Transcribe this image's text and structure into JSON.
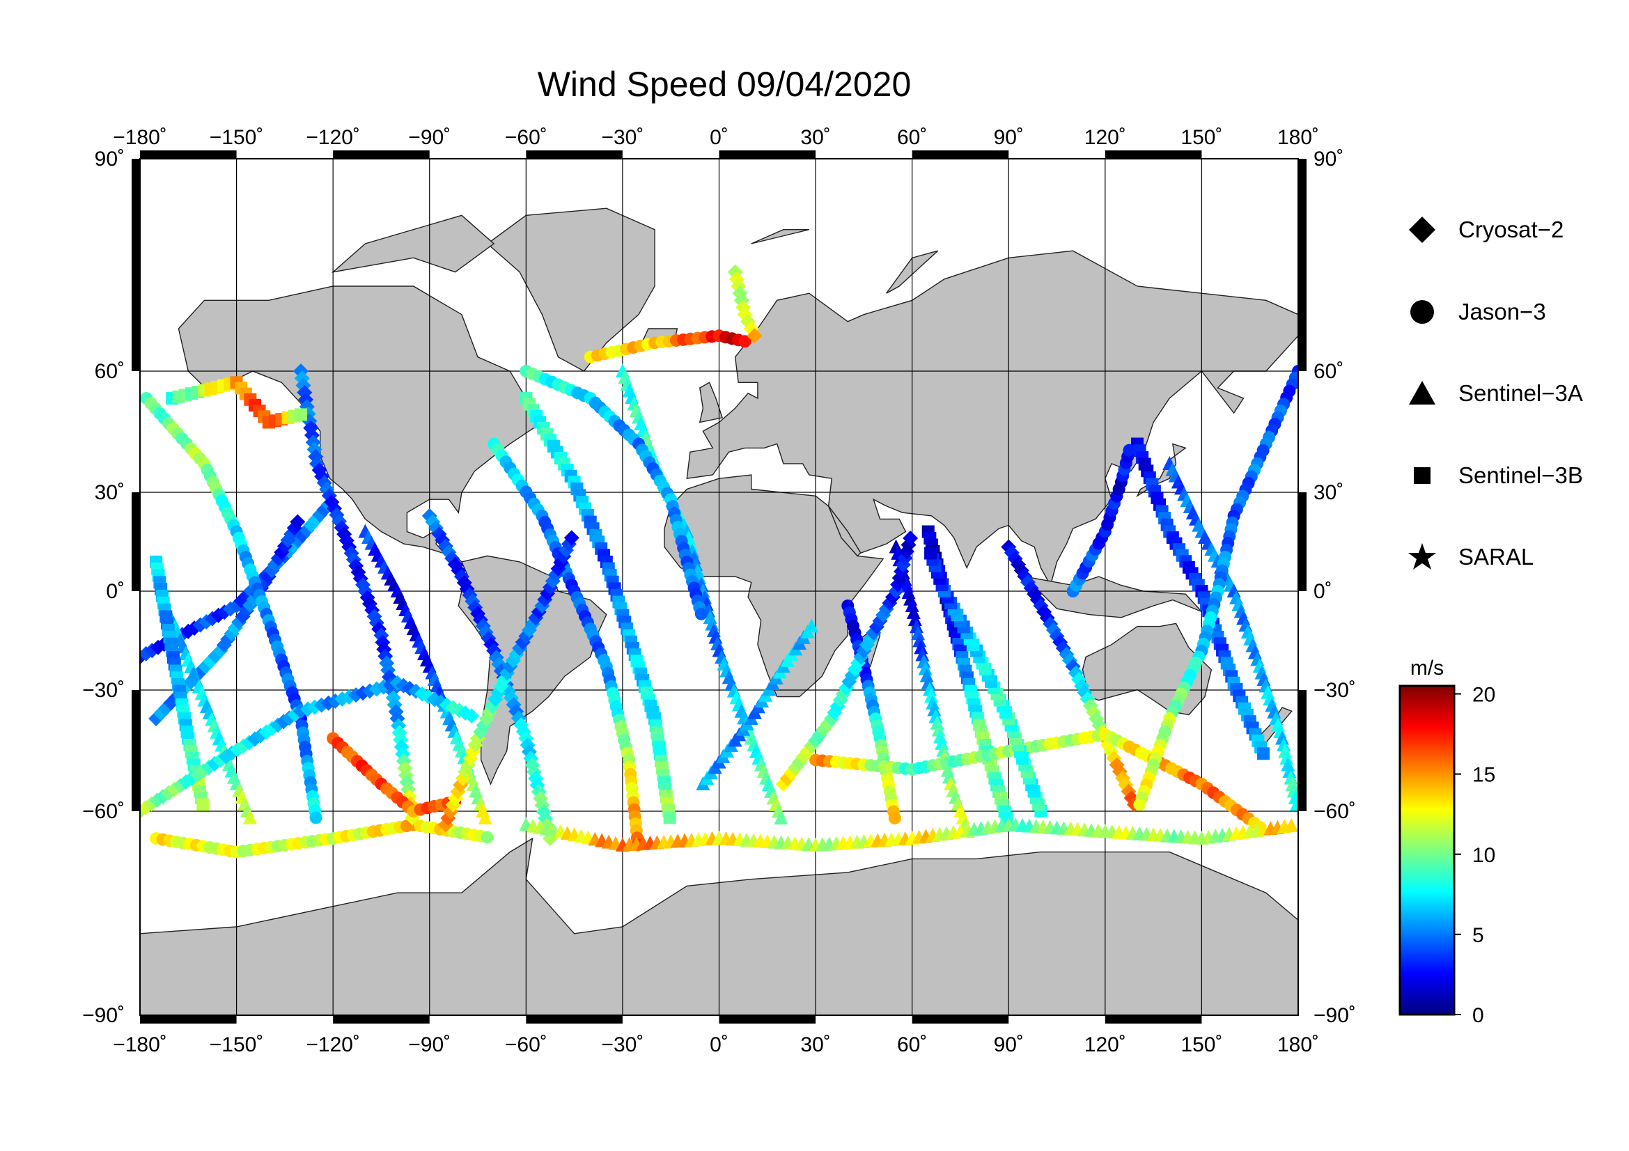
{
  "title": "Wind Speed 09/04/2020",
  "map": {
    "lon_ticks": [
      "−180˚",
      "−150˚",
      "−120˚",
      "−90˚",
      "−60˚",
      "−30˚",
      "0˚",
      "30˚",
      "60˚",
      "90˚",
      "120˚",
      "150˚",
      "180˚"
    ],
    "lat_ticks_left": [
      "90˚",
      "60˚",
      "30˚",
      "0˚",
      "−30˚",
      "−60˚",
      "−90˚"
    ],
    "lat_ticks_right": [
      "90˚",
      "60˚",
      "30˚",
      "0˚",
      "−30˚",
      "−60˚",
      "−90˚"
    ],
    "lon_values": [
      -180,
      -150,
      -120,
      -90,
      -60,
      -30,
      0,
      30,
      60,
      90,
      120,
      150,
      180
    ],
    "lat_values": [
      90,
      60,
      30,
      0,
      -30,
      -60,
      -90
    ],
    "projection": "mercator",
    "land_color": "#c0c0c0",
    "ocean_color": "#ffffff"
  },
  "legend": {
    "items": [
      {
        "label": "Cryosat−2",
        "symbol": "diamond-icon"
      },
      {
        "label": "Jason−3",
        "symbol": "circle-icon"
      },
      {
        "label": "Sentinel−3A",
        "symbol": "triangle-icon"
      },
      {
        "label": "Sentinel−3B",
        "symbol": "square-icon"
      },
      {
        "label": "SARAL",
        "symbol": "star-icon"
      }
    ]
  },
  "colorbar": {
    "unit": "m/s",
    "ticks": [
      "20",
      "15",
      "10",
      "5",
      "0"
    ],
    "tick_values": [
      20,
      15,
      10,
      5,
      0
    ],
    "range": [
      0,
      20.5
    ],
    "colors": [
      "#00007f",
      "#0000ff",
      "#007fff",
      "#00ffff",
      "#7fff7f",
      "#ffff00",
      "#ff7f00",
      "#ff0000",
      "#7f0000"
    ]
  },
  "tracks": [
    {
      "sat": "diamond",
      "pts": [
        [
          -180,
          -22
        ],
        [
          -150,
          -5
        ],
        [
          -135,
          12
        ],
        [
          -120,
          30
        ]
      ],
      "w": [
        3,
        4,
        5,
        6
      ]
    },
    {
      "sat": "diamond",
      "pts": [
        [
          -175,
          -40
        ],
        [
          -155,
          -20
        ],
        [
          -140,
          5
        ],
        [
          -130,
          25
        ]
      ],
      "w": [
        5,
        6,
        4,
        3
      ]
    },
    {
      "sat": "circle",
      "pts": [
        [
          -178,
          55
        ],
        [
          -160,
          40
        ],
        [
          -150,
          20
        ],
        [
          -140,
          -10
        ],
        [
          -130,
          -40
        ],
        [
          -125,
          -62
        ]
      ],
      "w": [
        9,
        11,
        7,
        5,
        4,
        8
      ]
    },
    {
      "sat": "circle",
      "pts": [
        [
          -175,
          -64
        ],
        [
          -150,
          -66
        ],
        [
          -120,
          -64
        ],
        [
          -95,
          -62
        ],
        [
          -70,
          -64
        ]
      ],
      "w": [
        13,
        12,
        12,
        14,
        11
      ]
    },
    {
      "sat": "triangle",
      "pts": [
        [
          -170,
          -10
        ],
        [
          -160,
          -35
        ],
        [
          -150,
          -55
        ],
        [
          -145,
          -62
        ]
      ],
      "w": [
        6,
        7,
        10,
        13
      ]
    },
    {
      "sat": "square",
      "pts": [
        [
          -175,
          10
        ],
        [
          -170,
          -20
        ],
        [
          -165,
          -45
        ],
        [
          -160,
          -60
        ]
      ],
      "w": [
        7,
        5,
        8,
        12
      ]
    },
    {
      "sat": "diamond",
      "pts": [
        [
          -130,
          60
        ],
        [
          -125,
          40
        ],
        [
          -115,
          15
        ],
        [
          -105,
          -15
        ],
        [
          -100,
          -40
        ],
        [
          -95,
          -62
        ]
      ],
      "w": [
        5,
        4,
        3,
        3,
        6,
        14
      ]
    },
    {
      "sat": "circle",
      "pts": [
        [
          -120,
          -45
        ],
        [
          -105,
          -55
        ],
        [
          -95,
          -60
        ],
        [
          -80,
          -58
        ]
      ],
      "w": [
        16,
        17,
        15,
        18
      ]
    },
    {
      "sat": "triangle",
      "pts": [
        [
          -110,
          20
        ],
        [
          -100,
          0
        ],
        [
          -90,
          -25
        ],
        [
          -80,
          -48
        ],
        [
          -72,
          -62
        ]
      ],
      "w": [
        4,
        2,
        3,
        8,
        13
      ]
    },
    {
      "sat": "diamond",
      "pts": [
        [
          -90,
          25
        ],
        [
          -80,
          5
        ],
        [
          -70,
          -20
        ],
        [
          -60,
          -45
        ],
        [
          -52,
          -65
        ]
      ],
      "w": [
        5,
        3,
        4,
        7,
        11
      ]
    },
    {
      "sat": "circle",
      "pts": [
        [
          -70,
          45
        ],
        [
          -55,
          25
        ],
        [
          -45,
          0
        ],
        [
          -35,
          -25
        ],
        [
          -28,
          -50
        ],
        [
          -25,
          -66
        ]
      ],
      "w": [
        8,
        5,
        4,
        5,
        12,
        16
      ]
    },
    {
      "sat": "square",
      "pts": [
        [
          -60,
          55
        ],
        [
          -45,
          35
        ],
        [
          -35,
          10
        ],
        [
          -28,
          -15
        ],
        [
          -20,
          -40
        ],
        [
          -15,
          -62
        ]
      ],
      "w": [
        9,
        7,
        4,
        6,
        8,
        11
      ]
    },
    {
      "sat": "triangle",
      "pts": [
        [
          -30,
          60
        ],
        [
          -20,
          40
        ],
        [
          -10,
          20
        ],
        [
          -5,
          0
        ],
        [
          0,
          -20
        ],
        [
          10,
          -45
        ],
        [
          20,
          -62
        ]
      ],
      "w": [
        8,
        9,
        7,
        5,
        5,
        8,
        11
      ]
    },
    {
      "sat": "circle",
      "pts": [
        [
          -40,
          62
        ],
        [
          -20,
          64
        ],
        [
          0,
          65
        ],
        [
          10,
          64
        ]
      ],
      "w": [
        13,
        14,
        18,
        19
      ]
    },
    {
      "sat": "diamond",
      "pts": [
        [
          5,
          74
        ],
        [
          8,
          68
        ],
        [
          12,
          64
        ]
      ],
      "w": [
        11,
        12,
        15
      ]
    },
    {
      "sat": "circle",
      "pts": [
        [
          40,
          -5
        ],
        [
          45,
          -25
        ],
        [
          50,
          -45
        ],
        [
          55,
          -62
        ]
      ],
      "w": [
        2,
        3,
        9,
        14
      ]
    },
    {
      "sat": "triangle",
      "pts": [
        [
          55,
          15
        ],
        [
          60,
          -5
        ],
        [
          65,
          -30
        ],
        [
          72,
          -55
        ],
        [
          78,
          -64
        ]
      ],
      "w": [
        1,
        2,
        6,
        11,
        12
      ]
    },
    {
      "sat": "square",
      "pts": [
        [
          65,
          20
        ],
        [
          70,
          0
        ],
        [
          75,
          -20
        ],
        [
          82,
          -45
        ],
        [
          90,
          -62
        ]
      ],
      "w": [
        1,
        1,
        4,
        10,
        9
      ]
    },
    {
      "sat": "diamond",
      "pts": [
        [
          90,
          15
        ],
        [
          100,
          -5
        ],
        [
          110,
          -25
        ],
        [
          120,
          -45
        ],
        [
          130,
          -60
        ]
      ],
      "w": [
        2,
        3,
        5,
        13,
        16
      ]
    },
    {
      "sat": "circle",
      "pts": [
        [
          30,
          -50
        ],
        [
          60,
          -52
        ],
        [
          90,
          -48
        ],
        [
          120,
          -44
        ],
        [
          150,
          -55
        ],
        [
          170,
          -63
        ]
      ],
      "w": [
        15,
        9,
        11,
        12,
        16,
        14
      ]
    },
    {
      "sat": "triangle",
      "pts": [
        [
          140,
          40
        ],
        [
          150,
          20
        ],
        [
          160,
          0
        ],
        [
          168,
          -25
        ],
        [
          175,
          -45
        ],
        [
          180,
          -60
        ]
      ],
      "w": [
        4,
        5,
        5,
        6,
        7,
        9
      ]
    },
    {
      "sat": "square",
      "pts": [
        [
          130,
          45
        ],
        [
          140,
          20
        ],
        [
          150,
          0
        ],
        [
          160,
          -30
        ],
        [
          170,
          -50
        ]
      ],
      "w": [
        2,
        4,
        3,
        5,
        6
      ]
    },
    {
      "sat": "circle",
      "pts": [
        [
          180,
          60
        ],
        [
          170,
          45
        ],
        [
          160,
          25
        ],
        [
          155,
          0
        ],
        [
          150,
          -20
        ],
        [
          140,
          -40
        ],
        [
          130,
          -60
        ]
      ],
      "w": [
        3,
        5,
        4,
        6,
        7,
        11,
        13
      ]
    },
    {
      "sat": "diamond",
      "pts": [
        [
          -180,
          -60
        ],
        [
          -155,
          -50
        ],
        [
          -130,
          -38
        ],
        [
          -100,
          -30
        ],
        [
          -75,
          -40
        ]
      ],
      "w": [
        11,
        8,
        6,
        5,
        9
      ]
    },
    {
      "sat": "triangle",
      "pts": [
        [
          -60,
          -62
        ],
        [
          -30,
          -65
        ],
        [
          0,
          -64
        ],
        [
          30,
          -65
        ],
        [
          60,
          -64
        ],
        [
          90,
          -62
        ],
        [
          120,
          -63
        ],
        [
          150,
          -64
        ],
        [
          180,
          -62
        ]
      ],
      "w": [
        10,
        16,
        13,
        11,
        14,
        9,
        12,
        10,
        15
      ]
    },
    {
      "sat": "square",
      "pts": [
        [
          -170,
          55
        ],
        [
          -150,
          58
        ],
        [
          -140,
          50
        ],
        [
          -128,
          52
        ]
      ],
      "w": [
        8,
        15,
        17,
        10
      ]
    },
    {
      "sat": "circle",
      "pts": [
        [
          -60,
          60
        ],
        [
          -40,
          55
        ],
        [
          -25,
          45
        ],
        [
          -15,
          30
        ],
        [
          -10,
          10
        ],
        [
          -5,
          -10
        ]
      ],
      "w": [
        9,
        7,
        5,
        6,
        5,
        4
      ]
    },
    {
      "sat": "diamond",
      "pts": [
        [
          20,
          -55
        ],
        [
          35,
          -40
        ],
        [
          45,
          -20
        ],
        [
          55,
          0
        ],
        [
          60,
          20
        ]
      ],
      "w": [
        13,
        9,
        6,
        3,
        2
      ]
    },
    {
      "sat": "square",
      "pts": [
        [
          100,
          -60
        ],
        [
          90,
          -40
        ],
        [
          80,
          -20
        ],
        [
          70,
          0
        ],
        [
          65,
          15
        ]
      ],
      "w": [
        8,
        9,
        7,
        4,
        2
      ]
    },
    {
      "sat": "triangle",
      "pts": [
        [
          -5,
          -55
        ],
        [
          10,
          -40
        ],
        [
          20,
          -25
        ],
        [
          30,
          -10
        ]
      ],
      "w": [
        6,
        5,
        7,
        6
      ]
    },
    {
      "sat": "circle",
      "pts": [
        [
          110,
          0
        ],
        [
          120,
          20
        ],
        [
          125,
          35
        ],
        [
          128,
          45
        ]
      ],
      "w": [
        5,
        3,
        2,
        4
      ]
    },
    {
      "sat": "diamond",
      "pts": [
        [
          -85,
          -62
        ],
        [
          -75,
          -45
        ],
        [
          -65,
          -25
        ],
        [
          -55,
          -5
        ],
        [
          -45,
          20
        ]
      ],
      "w": [
        15,
        11,
        6,
        4,
        3
      ]
    }
  ]
}
